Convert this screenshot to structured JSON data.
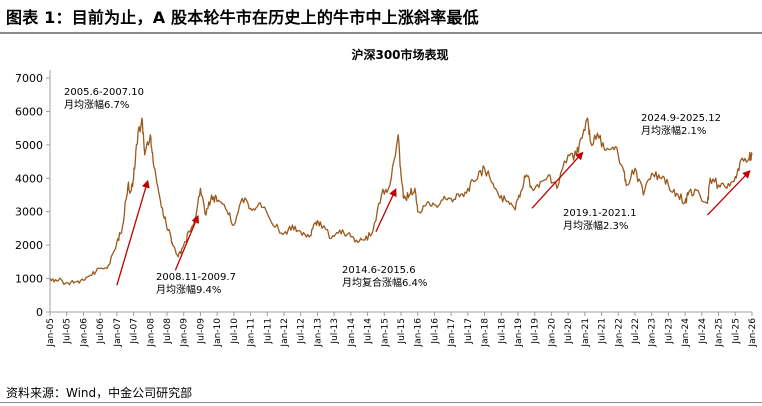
{
  "figure_title": "图表 1：目前为止，A 股本轮牛市在历史上的牛市中上涨斜率最低",
  "source": "资料来源：Wind，中金公司研究部",
  "colors": {
    "line": "#9a5a1e",
    "arrow": "#c00000",
    "axis": "#a0a0a0"
  },
  "chart_data": {
    "type": "line",
    "title": "沪深300市场表现",
    "xlabel": "",
    "ylabel": "",
    "ylim": [
      0,
      7000
    ],
    "yticks": [
      0,
      1000,
      2000,
      3000,
      4000,
      5000,
      6000,
      7000
    ],
    "xlim": [
      "2005-01",
      "2026-01"
    ],
    "xticks": [
      "Jan-05",
      "Jul-05",
      "Jan-06",
      "Jul-06",
      "Jan-07",
      "Jul-07",
      "Jan-08",
      "Jul-08",
      "Jan-09",
      "Jul-09",
      "Jan-10",
      "Jul-10",
      "Jan-11",
      "Jul-11",
      "Jan-12",
      "Jul-12",
      "Jan-13",
      "Jul-13",
      "Jan-14",
      "Jul-14",
      "Jan-15",
      "Jul-15",
      "Jan-16",
      "Jul-16",
      "Jan-17",
      "Jul-17",
      "Jan-18",
      "Jul-18",
      "Jan-19",
      "Jul-19",
      "Jan-20",
      "Jul-20",
      "Jan-21",
      "Jul-21",
      "Jan-22",
      "Jul-22",
      "Jan-23",
      "Jul-23",
      "Jan-24",
      "Jul-24",
      "Jan-25",
      "Jul-25",
      "Jan-26"
    ],
    "series": [
      {
        "name": "沪深300",
        "points": [
          [
            "2005-01",
            1000
          ],
          [
            "2005-04",
            940
          ],
          [
            "2005-07",
            880
          ],
          [
            "2005-10",
            900
          ],
          [
            "2006-01",
            950
          ],
          [
            "2006-04",
            1100
          ],
          [
            "2006-07",
            1300
          ],
          [
            "2006-10",
            1400
          ],
          [
            "2007-01",
            2100
          ],
          [
            "2007-03",
            2550
          ],
          [
            "2007-05",
            3800
          ],
          [
            "2007-06",
            3600
          ],
          [
            "2007-07",
            4000
          ],
          [
            "2007-08",
            5000
          ],
          [
            "2007-10",
            5800
          ],
          [
            "2007-11",
            4700
          ],
          [
            "2008-01",
            5300
          ],
          [
            "2008-02",
            4500
          ],
          [
            "2008-04",
            3600
          ],
          [
            "2008-06",
            2800
          ],
          [
            "2008-08",
            2400
          ],
          [
            "2008-09",
            2000
          ],
          [
            "2008-11",
            1650
          ],
          [
            "2009-01",
            2000
          ],
          [
            "2009-03",
            2400
          ],
          [
            "2009-05",
            2800
          ],
          [
            "2009-07",
            3700
          ],
          [
            "2009-09",
            2900
          ],
          [
            "2009-11",
            3500
          ],
          [
            "2010-01",
            3300
          ],
          [
            "2010-04",
            3100
          ],
          [
            "2010-07",
            2600
          ],
          [
            "2010-10",
            3400
          ],
          [
            "2011-01",
            3100
          ],
          [
            "2011-04",
            3250
          ],
          [
            "2011-07",
            2950
          ],
          [
            "2011-10",
            2550
          ],
          [
            "2012-01",
            2350
          ],
          [
            "2012-04",
            2600
          ],
          [
            "2012-07",
            2400
          ],
          [
            "2012-10",
            2250
          ],
          [
            "2012-12",
            2650
          ],
          [
            "2013-02",
            2700
          ],
          [
            "2013-06",
            2200
          ],
          [
            "2013-09",
            2450
          ],
          [
            "2013-12",
            2350
          ],
          [
            "2014-03",
            2150
          ],
          [
            "2014-06",
            2150
          ],
          [
            "2014-09",
            2450
          ],
          [
            "2014-12",
            3500
          ],
          [
            "2015-03",
            3800
          ],
          [
            "2015-06",
            5300
          ],
          [
            "2015-07",
            4100
          ],
          [
            "2015-08",
            3400
          ],
          [
            "2015-10",
            3500
          ],
          [
            "2015-12",
            3700
          ],
          [
            "2016-01",
            3000
          ],
          [
            "2016-04",
            3200
          ],
          [
            "2016-07",
            3200
          ],
          [
            "2016-10",
            3350
          ],
          [
            "2017-01",
            3400
          ],
          [
            "2017-04",
            3450
          ],
          [
            "2017-07",
            3700
          ],
          [
            "2017-10",
            3950
          ],
          [
            "2018-01",
            4300
          ],
          [
            "2018-03",
            4000
          ],
          [
            "2018-06",
            3500
          ],
          [
            "2018-09",
            3300
          ],
          [
            "2018-12",
            3050
          ],
          [
            "2019-02",
            3600
          ],
          [
            "2019-04",
            4100
          ],
          [
            "2019-06",
            3700
          ],
          [
            "2019-09",
            3900
          ],
          [
            "2019-12",
            4100
          ],
          [
            "2020-03",
            3700
          ],
          [
            "2020-07",
            4700
          ],
          [
            "2020-10",
            4700
          ],
          [
            "2020-12",
            5200
          ],
          [
            "2021-02",
            5800
          ],
          [
            "2021-03",
            5100
          ],
          [
            "2021-06",
            5200
          ],
          [
            "2021-09",
            4900
          ],
          [
            "2021-12",
            4950
          ],
          [
            "2022-03",
            4200
          ],
          [
            "2022-04",
            3800
          ],
          [
            "2022-07",
            4300
          ],
          [
            "2022-10",
            3500
          ],
          [
            "2023-01",
            4150
          ],
          [
            "2023-04",
            4000
          ],
          [
            "2023-07",
            3800
          ],
          [
            "2023-10",
            3550
          ],
          [
            "2024-01",
            3300
          ],
          [
            "2024-02",
            3500
          ],
          [
            "2024-05",
            3650
          ],
          [
            "2024-09",
            3250
          ],
          [
            "2024-10",
            4000
          ],
          [
            "2025-01",
            3800
          ],
          [
            "2025-04",
            3700
          ],
          [
            "2025-07",
            4050
          ],
          [
            "2025-09",
            4550
          ],
          [
            "2025-12",
            4600
          ],
          [
            "2026-01",
            4700
          ]
        ]
      }
    ],
    "annotations": [
      {
        "lines": [
          "2005.6-2007.10",
          "月均涨幅6.7%"
        ],
        "arrow_from": [
          "2007-01",
          800
        ],
        "arrow_to": [
          "2007-12",
          3900
        ]
      },
      {
        "lines": [
          "2008.11-2009.7",
          "月均涨幅9.4%"
        ],
        "arrow_from": [
          "2008-10",
          1250
        ],
        "arrow_to": [
          "2009-06",
          2850
        ]
      },
      {
        "lines": [
          "2014.6-2015.6",
          "月均复合涨幅6.4%"
        ],
        "arrow_from": [
          "2014-10",
          2400
        ],
        "arrow_to": [
          "2015-05",
          3650
        ]
      },
      {
        "lines": [
          "2019.1-2021.1",
          "月均涨幅2.3%"
        ],
        "arrow_from": [
          "2019-06",
          3100
        ],
        "arrow_to": [
          "2020-12",
          4750
        ]
      },
      {
        "lines": [
          "2024.9-2025.12",
          "月均涨幅2.1%"
        ],
        "arrow_from": [
          "2024-09",
          2900
        ],
        "arrow_to": [
          "2025-12",
          4200
        ]
      }
    ]
  }
}
